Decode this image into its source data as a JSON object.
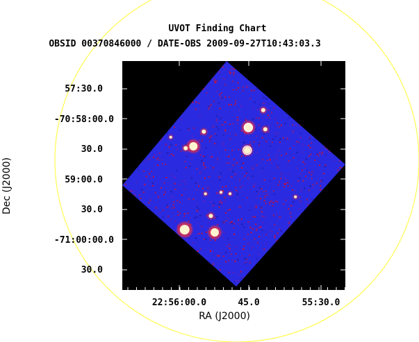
{
  "header": {
    "title": "UVOT Finding Chart",
    "subtitle": "OBSID 00370846000 / DATE-OBS 2009-09-27T10:43:03.3"
  },
  "axes": {
    "xlabel": "RA (J2000)",
    "ylabel": "Dec (J2000)",
    "x_ticks": [
      "22:56:00.0",
      "45.0",
      "55:30.0"
    ],
    "y_ticks": [
      "57:30.0",
      "-70:58:00.0",
      "30.0",
      "59:00.0",
      "30.0",
      "-71:00:00.0",
      "30.0"
    ]
  },
  "colors": {
    "background": "#000000",
    "field": "#2a2ae0",
    "noise": "#d01030",
    "circle": "#ffff33",
    "marker": "#ffffff"
  },
  "image": {
    "stars": [
      {
        "u": 0.38,
        "v": 0.22,
        "r": 6,
        "circled": true
      },
      {
        "u": 0.47,
        "v": 0.33,
        "r": 5,
        "circled": true
      },
      {
        "u": 0.19,
        "v": 0.53,
        "r": 6,
        "circled": false
      },
      {
        "u": 0.66,
        "v": 0.84,
        "r": 6,
        "circled": false
      },
      {
        "u": 0.5,
        "v": 0.95,
        "r": 7,
        "circled": false
      },
      {
        "u": 0.38,
        "v": 0.08,
        "r": 3,
        "circled": false
      },
      {
        "u": 0.47,
        "v": 0.16,
        "r": 3,
        "circled": false
      },
      {
        "u": 0.18,
        "v": 0.42,
        "r": 3,
        "circled": false
      },
      {
        "u": 0.16,
        "v": 0.57,
        "r": 3,
        "circled": false
      },
      {
        "u": 0.04,
        "v": 0.58,
        "r": 2,
        "circled": false
      },
      {
        "u": 0.57,
        "v": 0.6,
        "r": 2,
        "circled": false
      },
      {
        "u": 0.52,
        "v": 0.63,
        "r": 2,
        "circled": false
      },
      {
        "u": 0.57,
        "v": 0.78,
        "r": 3,
        "circled": false
      },
      {
        "u": 0.9,
        "v": 0.35,
        "r": 2,
        "circled": false
      },
      {
        "u": 0.45,
        "v": 0.7,
        "r": 2,
        "circled": false
      }
    ]
  }
}
